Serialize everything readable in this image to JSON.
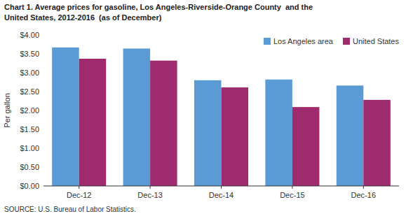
{
  "chart_data": {
    "type": "bar",
    "title": "Chart 1. Average prices for gasoline, Los Angeles-Riverside-Orange County  and the\nUnited States, 2012-2016  (as of December)",
    "ylabel": "Per gallon",
    "source": "SOURCE: U.S. Bureau of Labor Statistics.",
    "categories": [
      "Dec-12",
      "Dec-13",
      "Dec-14",
      "Dec-15",
      "Dec-16"
    ],
    "series": [
      {
        "name": "Los Angeles area",
        "color": "#5B9BD5",
        "values": [
          3.67,
          3.64,
          2.8,
          2.82,
          2.66
        ]
      },
      {
        "name": "United States",
        "color": "#9E2B6E",
        "values": [
          3.37,
          3.32,
          2.61,
          2.09,
          2.28
        ]
      }
    ],
    "ylim": [
      0.0,
      4.0
    ],
    "yticks": [
      {
        "value": 0.0,
        "label": "$0.00"
      },
      {
        "value": 0.5,
        "label": "$0.50"
      },
      {
        "value": 1.0,
        "label": "$1.00"
      },
      {
        "value": 1.5,
        "label": "$1.50"
      },
      {
        "value": 2.0,
        "label": "$2.00"
      },
      {
        "value": 2.5,
        "label": "$2.50"
      },
      {
        "value": 3.0,
        "label": "$3.00"
      },
      {
        "value": 3.5,
        "label": "$3.50"
      },
      {
        "value": 4.0,
        "label": "$4.00"
      }
    ],
    "grid": false,
    "legend": "upper right"
  }
}
